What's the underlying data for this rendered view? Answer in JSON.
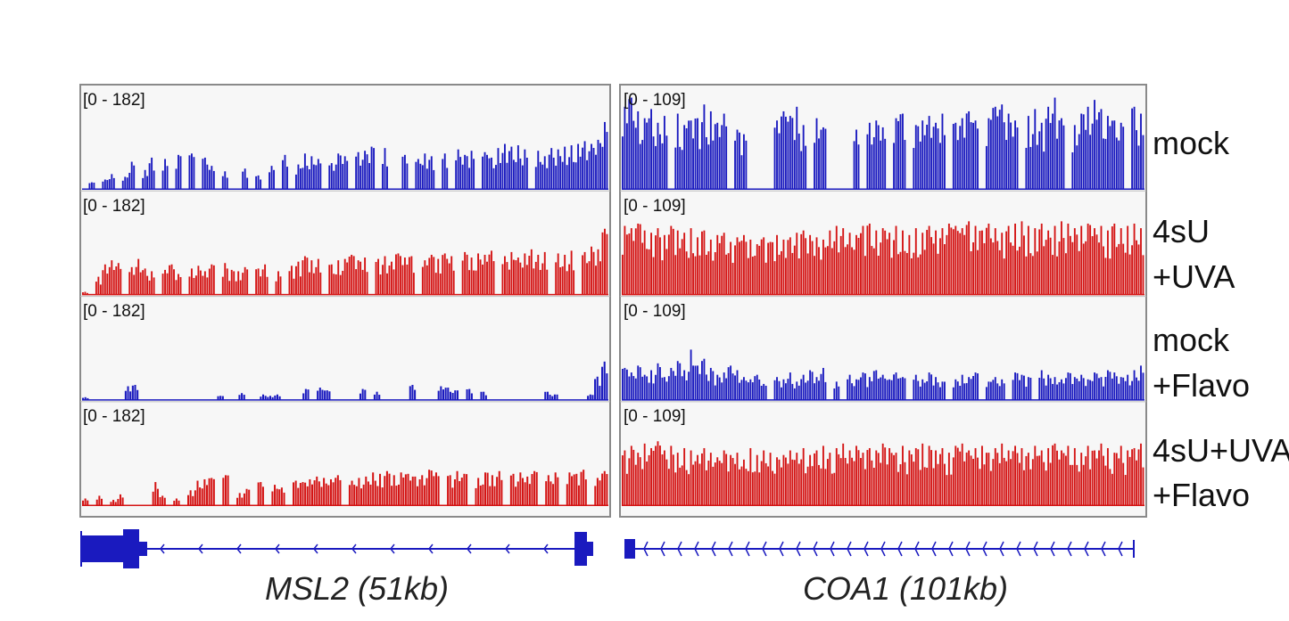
{
  "colors": {
    "blue": "#1a1abf",
    "red": "#d41414",
    "gene_model": "#1a1abf",
    "panel_background": "#f7f7f7",
    "frame": "#8a8a8a"
  },
  "conditions": [
    {
      "id": "mock",
      "lines": [
        "mock"
      ],
      "color": "blue"
    },
    {
      "id": "4su-uva",
      "lines": [
        "4sU",
        "+UVA"
      ],
      "color": "red"
    },
    {
      "id": "mock-flavo",
      "lines": [
        "mock",
        "+Flavo"
      ],
      "color": "blue"
    },
    {
      "id": "4su-uva-flavo",
      "lines": [
        "4sU+UVA",
        "+Flavo"
      ],
      "color": "red"
    }
  ],
  "panels": [
    {
      "id": "msl2",
      "gene_label": "MSL2 (51kb)",
      "range_label": "[0 - 182]",
      "range_max": 182
    },
    {
      "id": "coa1",
      "gene_label": "COA1 (101kb)",
      "range_label": "[0 - 109]",
      "range_max": 109
    }
  ],
  "chart_data": {
    "type": "bar",
    "description_of_tracks": "genome browser coverage tracks, 4 conditions x 2 genes",
    "tracks": [
      {
        "gene": "MSL2 (51kb)",
        "condition": "mock",
        "ymax": 182,
        "profile": [
          0,
          10,
          0,
          14,
          22,
          0,
          18,
          40,
          0,
          28,
          46,
          0,
          44,
          0,
          50,
          0,
          52,
          0,
          46,
          34,
          0,
          26,
          0,
          0,
          30,
          0,
          20,
          0,
          34,
          0,
          50,
          0,
          36,
          52,
          48,
          44,
          0,
          38,
          52,
          48,
          0,
          54,
          56,
          62,
          0,
          60,
          0,
          0,
          50,
          0,
          44,
          52,
          48,
          0,
          52,
          0,
          58,
          50,
          56,
          0,
          54,
          46,
          60,
          66,
          62,
          64,
          58,
          0,
          56,
          48,
          60,
          58,
          62,
          64,
          66,
          70,
          66,
          72,
          98
        ]
      },
      {
        "gene": "MSL2 (51kb)",
        "condition": "4sU +UVA",
        "ymax": 182,
        "profile": [
          4,
          0,
          26,
          44,
          50,
          46,
          0,
          40,
          52,
          38,
          34,
          0,
          36,
          44,
          30,
          0,
          38,
          42,
          34,
          44,
          0,
          46,
          36,
          34,
          40,
          0,
          38,
          44,
          0,
          34,
          0,
          42,
          48,
          56,
          50,
          52,
          0,
          44,
          50,
          52,
          58,
          50,
          54,
          0,
          52,
          56,
          48,
          60,
          54,
          56,
          0,
          50,
          58,
          52,
          60,
          56,
          0,
          62,
          54,
          60,
          58,
          64,
          0,
          56,
          62,
          54,
          60,
          66,
          58,
          62,
          0,
          60,
          58,
          64,
          0,
          62,
          70,
          66,
          96
        ]
      },
      {
        "gene": "MSL2 (51kb)",
        "condition": "mock +Flavo",
        "ymax": 182,
        "profile": [
          4,
          0,
          0,
          0,
          0,
          0,
          20,
          22,
          0,
          0,
          0,
          0,
          0,
          0,
          0,
          0,
          0,
          0,
          0,
          6,
          0,
          0,
          10,
          0,
          0,
          8,
          6,
          8,
          0,
          0,
          0,
          16,
          0,
          18,
          14,
          0,
          0,
          0,
          0,
          16,
          0,
          12,
          0,
          0,
          0,
          0,
          22,
          0,
          0,
          0,
          20,
          18,
          14,
          0,
          16,
          0,
          12,
          0,
          0,
          0,
          0,
          0,
          0,
          0,
          0,
          12,
          8,
          0,
          0,
          0,
          0,
          8,
          34,
          56
        ]
      },
      {
        "gene": "MSL2 (51kb)",
        "condition": "4sU+UVA +Flavo",
        "ymax": 182,
        "profile": [
          10,
          0,
          14,
          0,
          8,
          16,
          0,
          0,
          0,
          0,
          34,
          14,
          0,
          10,
          0,
          22,
          36,
          38,
          40,
          0,
          44,
          0,
          18,
          24,
          0,
          34,
          0,
          30,
          26,
          0,
          36,
          34,
          38,
          42,
          40,
          38,
          44,
          0,
          36,
          40,
          42,
          48,
          46,
          50,
          44,
          48,
          46,
          42,
          44,
          52,
          48,
          0,
          44,
          50,
          46,
          0,
          40,
          48,
          44,
          50,
          0,
          46,
          48,
          42,
          50,
          0,
          44,
          48,
          0,
          48,
          46,
          52,
          0,
          40,
          50
        ]
      },
      {
        "gene": "COA1 (101kb)",
        "condition": "mock",
        "ymax": 109,
        "profile": [
          72,
          80,
          68,
          62,
          70,
          58,
          64,
          0,
          66,
          56,
          60,
          62,
          74,
          68,
          58,
          66,
          0,
          52,
          48,
          0,
          0,
          0,
          0,
          60,
          68,
          64,
          72,
          56,
          0,
          62,
          54,
          0,
          0,
          0,
          0,
          52,
          0,
          58,
          60,
          54,
          0,
          62,
          66,
          0,
          56,
          60,
          64,
          58,
          66,
          0,
          58,
          62,
          68,
          60,
          0,
          62,
          72,
          74,
          66,
          60,
          0,
          64,
          70,
          58,
          72,
          80,
          62,
          0,
          56,
          66,
          72,
          78,
          70,
          64,
          60,
          58,
          0,
          72,
          66
        ]
      },
      {
        "gene": "COA1 (101kb)",
        "condition": "4sU +UVA",
        "ymax": 109,
        "profile": [
          60,
          58,
          62,
          56,
          54,
          58,
          52,
          60,
          56,
          54,
          58,
          50,
          56,
          48,
          52,
          54,
          46,
          50,
          52,
          48,
          44,
          50,
          46,
          52,
          48,
          50,
          54,
          56,
          52,
          50,
          48,
          56,
          60,
          58,
          54,
          52,
          60,
          62,
          56,
          58,
          54,
          60,
          56,
          52,
          58,
          54,
          60,
          56,
          58,
          62,
          60,
          58,
          64,
          60,
          56,
          62,
          58,
          54,
          60,
          62,
          64,
          60,
          58,
          62,
          56,
          60,
          64,
          62,
          58,
          60,
          62,
          58,
          60,
          56,
          62,
          58,
          60,
          62,
          58
        ]
      },
      {
        "gene": "COA1 (101kb)",
        "condition": "mock +Flavo",
        "ymax": 109,
        "profile": [
          28,
          24,
          30,
          22,
          26,
          32,
          20,
          28,
          34,
          26,
          44,
          30,
          36,
          28,
          22,
          24,
          30,
          26,
          20,
          18,
          22,
          14,
          0,
          20,
          18,
          24,
          16,
          22,
          26,
          20,
          28,
          0,
          16,
          0,
          22,
          18,
          24,
          20,
          26,
          22,
          18,
          24,
          20,
          0,
          22,
          18,
          24,
          20,
          16,
          0,
          18,
          22,
          20,
          24,
          0,
          16,
          20,
          18,
          0,
          24,
          22,
          20,
          0,
          26,
          22,
          20,
          18,
          24,
          20,
          22,
          18,
          24,
          20,
          26,
          24,
          20,
          22,
          26,
          30
        ]
      },
      {
        "gene": "COA1 (101kb)",
        "condition": "4sU+UVA +Flavo",
        "ymax": 109,
        "profile": [
          48,
          52,
          46,
          54,
          50,
          56,
          48,
          52,
          46,
          50,
          48,
          44,
          50,
          46,
          42,
          48,
          44,
          46,
          40,
          50,
          44,
          48,
          46,
          42,
          44,
          48,
          46,
          50,
          44,
          48,
          52,
          46,
          50,
          54,
          48,
          52,
          46,
          50,
          48,
          54,
          50,
          46,
          52,
          48,
          50,
          54,
          52,
          48,
          50,
          46,
          52,
          54,
          48,
          50,
          52,
          46,
          50,
          54,
          48,
          52,
          50,
          46,
          52,
          48,
          50,
          54,
          48,
          52,
          50,
          46,
          52,
          48,
          54,
          50,
          46,
          52,
          48,
          50,
          54
        ]
      }
    ]
  }
}
